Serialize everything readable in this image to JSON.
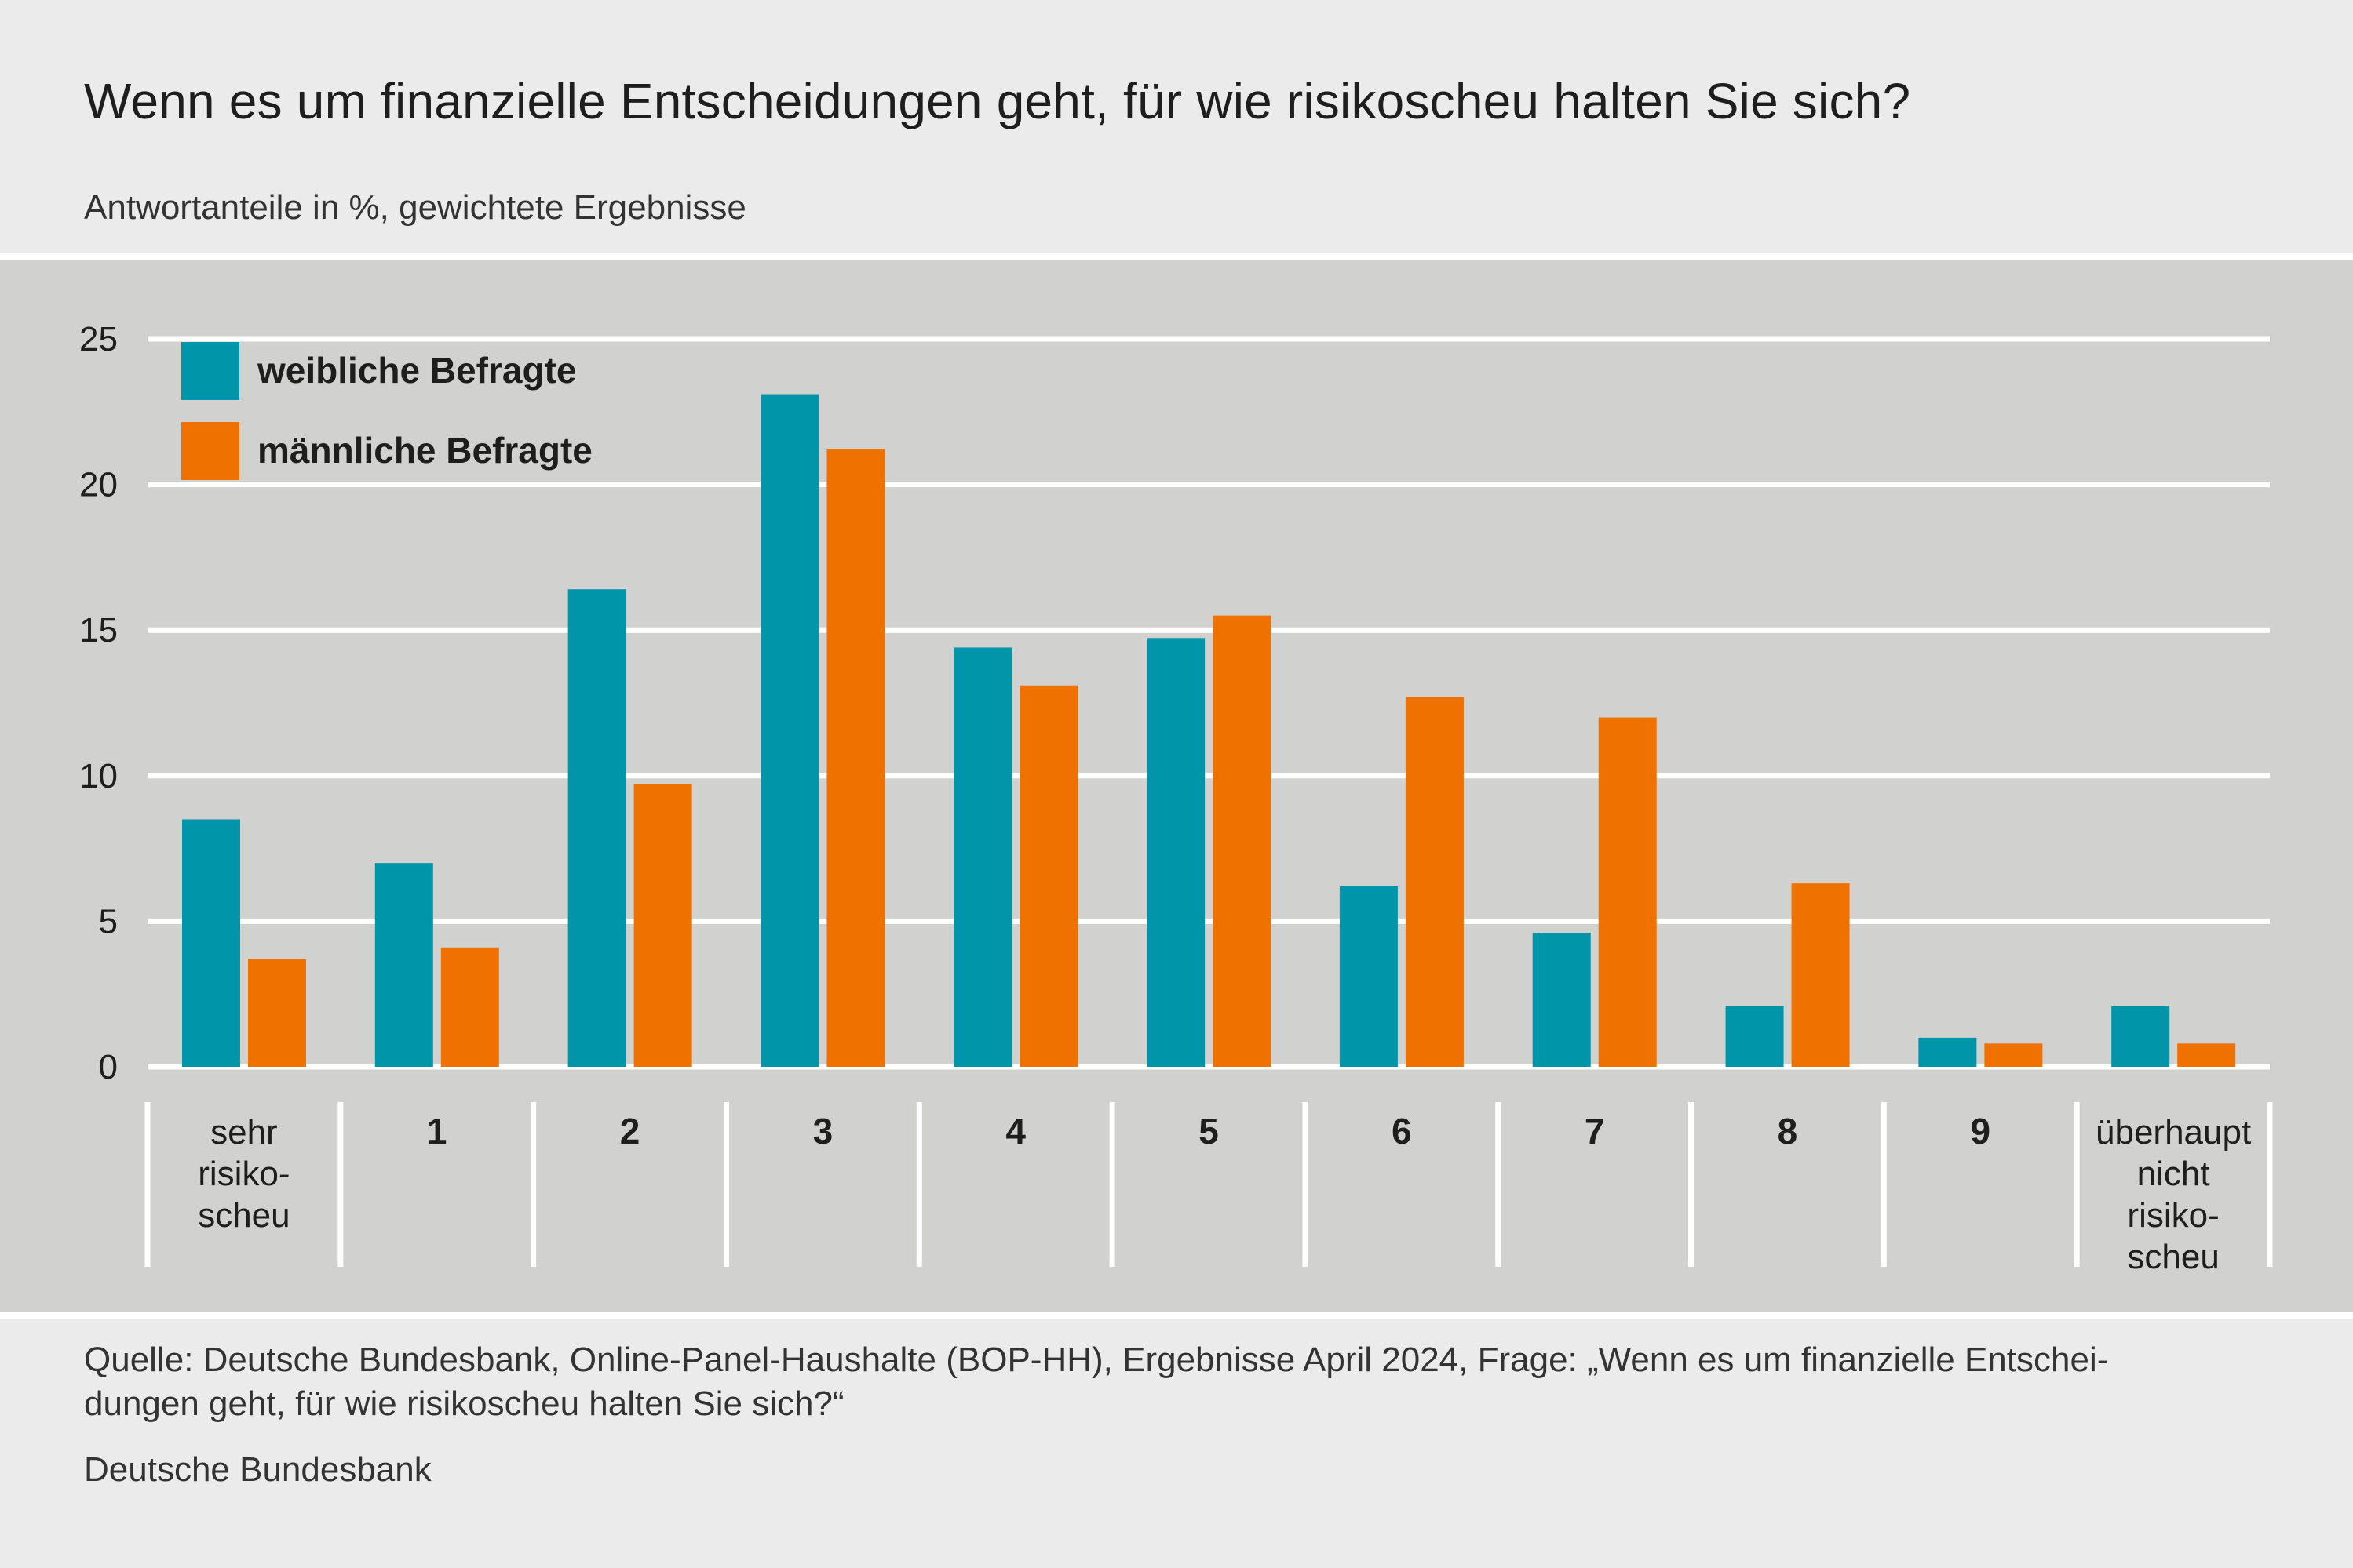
{
  "header": {
    "title": "Wenn es um finanzielle Entscheidungen geht, für wie risikoscheu halten Sie sich?",
    "subtitle": "Antwortanteile in %, gewichtete Ergebnisse"
  },
  "footer": {
    "source_line1": "Quelle: Deutsche Bundesbank, Online-Panel-Haushalte (BOP-HH), Ergebnisse April 2024, Frage: „Wenn es um finanzielle Entschei-",
    "source_line2": "dungen geht, für wie risikoscheu halten Sie sich?“",
    "publisher": "Deutsche Bundesbank"
  },
  "colors": {
    "female": "#0095a8",
    "male": "#ef7200",
    "panel": "#d1d1cf",
    "grid": "#ffffff",
    "text": "#1e1e1e"
  },
  "chart_data": {
    "type": "bar",
    "title": "Wenn es um finanzielle Entscheidungen geht, für wie risikoscheu halten Sie sich?",
    "subtitle": "Antwortanteile in %, gewichtete Ergebnisse",
    "categories": [
      [
        "sehr",
        "risiko-",
        "scheu"
      ],
      [
        "1"
      ],
      [
        "2"
      ],
      [
        "3"
      ],
      [
        "4"
      ],
      [
        "5"
      ],
      [
        "6"
      ],
      [
        "7"
      ],
      [
        "8"
      ],
      [
        "9"
      ],
      [
        "überhaupt",
        "nicht",
        "risiko-",
        "scheu"
      ]
    ],
    "category_bold": [
      false,
      true,
      true,
      true,
      true,
      true,
      true,
      true,
      true,
      true,
      false
    ],
    "series": [
      {
        "name": "weibliche Befragte",
        "values": [
          8.5,
          7.0,
          16.4,
          23.1,
          14.4,
          14.7,
          6.2,
          4.6,
          2.1,
          1.0,
          2.1
        ]
      },
      {
        "name": "männliche Befragte",
        "values": [
          3.7,
          4.1,
          9.7,
          21.2,
          13.1,
          15.5,
          12.7,
          12.0,
          6.3,
          0.8,
          0.8
        ]
      }
    ],
    "ylim": [
      0,
      25
    ],
    "yticks": [
      0,
      5,
      10,
      15,
      20,
      25
    ],
    "grid": true,
    "legend": "top-left",
    "xlabel": "",
    "ylabel": ""
  }
}
